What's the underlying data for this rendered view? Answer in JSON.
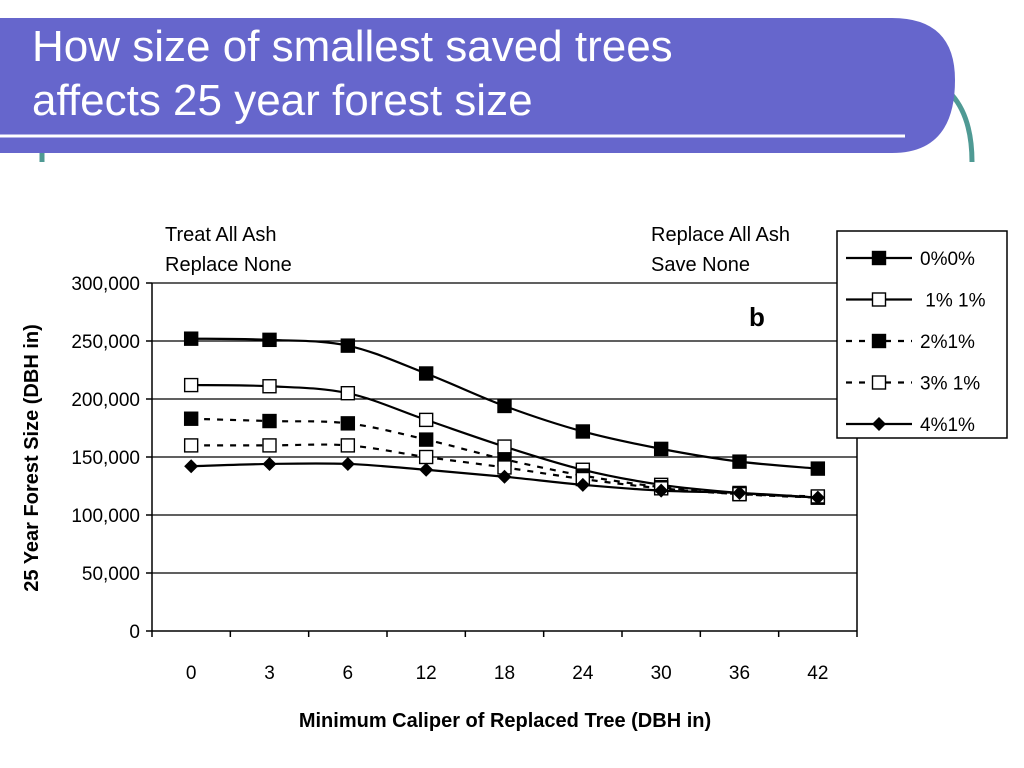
{
  "slide": {
    "title_line1": "How size of smallest saved trees",
    "title_line2": "affects 25 year forest size",
    "colors": {
      "title_bg": "#6666cc",
      "accent_line": "#4f9a94",
      "title_text": "#ffffff"
    }
  },
  "annotations": {
    "left_line1": "Treat All Ash",
    "left_line2": "Replace None",
    "right_line1": "Replace All Ash",
    "right_line2": "Save None",
    "panel_letter": "b"
  },
  "chart_data": {
    "type": "line",
    "title": "",
    "xlabel": "Minimum Caliper of Replaced Tree (DBH in)",
    "ylabel": "25 Year Forest Size (DBH in)",
    "categories": [
      "0",
      "3",
      "6",
      "12",
      "18",
      "24",
      "30",
      "36",
      "42"
    ],
    "y_ticks": [
      "0",
      "50,000",
      "100,000",
      "150,000",
      "200,000",
      "250,000",
      "300,000"
    ],
    "ylim": [
      0,
      300000
    ],
    "grid": "horizontal",
    "legend_position": "top-right",
    "series": [
      {
        "name": "0%0%",
        "values": [
          252000,
          251000,
          246000,
          222000,
          194000,
          172000,
          157000,
          146000,
          140000
        ],
        "line": "solid",
        "marker": "filled-square"
      },
      {
        "name": " 1% 1%",
        "values": [
          212000,
          211000,
          205000,
          182000,
          159000,
          139000,
          126000,
          119000,
          115000
        ],
        "line": "solid",
        "marker": "open-square"
      },
      {
        "name": "2%1%",
        "values": [
          183000,
          181000,
          179000,
          165000,
          148000,
          134000,
          124000,
          118000,
          115000
        ],
        "line": "dashed",
        "marker": "filled-square"
      },
      {
        "name": "3% 1%",
        "values": [
          160000,
          160000,
          160000,
          150000,
          141000,
          131000,
          123000,
          118000,
          116000
        ],
        "line": "dashed",
        "marker": "open-square"
      },
      {
        "name": "4%1%",
        "values": [
          142000,
          144000,
          144000,
          139000,
          133000,
          126000,
          121000,
          119000,
          115000
        ],
        "line": "solid",
        "marker": "filled-diamond"
      }
    ]
  }
}
